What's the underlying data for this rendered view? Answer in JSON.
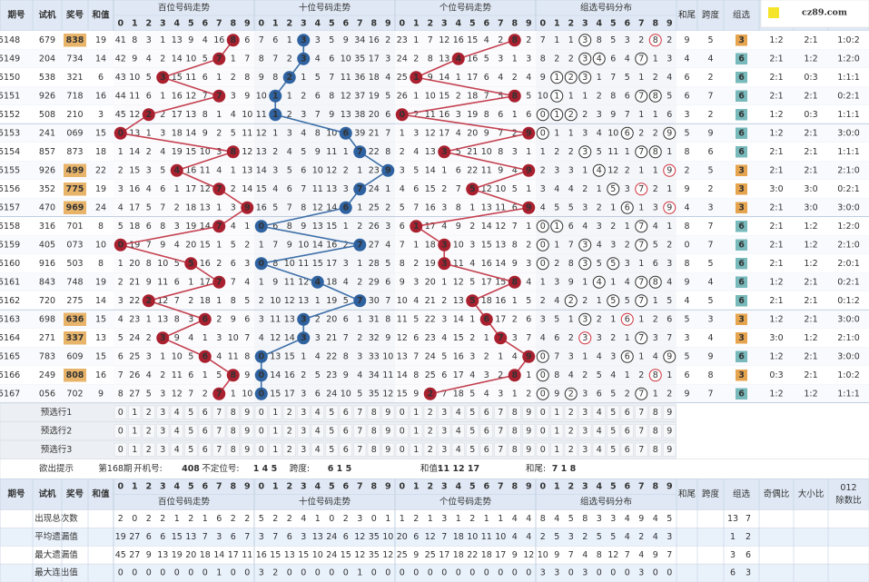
{
  "header": {
    "period": "期号",
    "trial": "试机",
    "prize": "奖号",
    "sum": "和值",
    "groups": [
      "百位号码走势",
      "十位号码走势",
      "个位号码走势",
      "组选号码分布"
    ],
    "digits": [
      0,
      1,
      2,
      3,
      4,
      5,
      6,
      7,
      8,
      9
    ],
    "tail": "和尾",
    "span": "跨度",
    "group": "组选",
    "parity": "奇偶比",
    "size": "大小比",
    "mod3": [
      "012",
      "除数比"
    ]
  },
  "watermark": "cz89.com",
  "rows": [
    {
      "period": 2025148,
      "trial": "679",
      "prize": "838",
      "sum": 19,
      "hundreds": [
        41,
        8,
        3,
        1,
        13,
        9,
        4,
        16,
        8,
        6
      ],
      "tens": [
        7,
        6,
        1,
        3,
        3,
        5,
        9,
        34,
        16,
        2
      ],
      "units": [
        23,
        1,
        7,
        12,
        16,
        15,
        4,
        2,
        8,
        2
      ],
      "dist": [
        7,
        1,
        1,
        3,
        8,
        5,
        3,
        2,
        8,
        2
      ],
      "tail": 9,
      "span": 5,
      "group": 3,
      "parity": "1:2",
      "size": "2:1",
      "mod3": "1:0:2"
    },
    {
      "period": 2025149,
      "trial": "204",
      "prize": "734",
      "sum": 14,
      "hundreds": [
        42,
        9,
        4,
        2,
        14,
        10,
        5,
        7,
        1,
        7
      ],
      "tens": [
        8,
        7,
        2,
        3,
        4,
        6,
        10,
        35,
        17,
        3
      ],
      "units": [
        24,
        2,
        8,
        13,
        4,
        16,
        5,
        3,
        1,
        3
      ],
      "dist": [
        8,
        2,
        2,
        3,
        4,
        6,
        4,
        7,
        1,
        3
      ],
      "tail": 4,
      "span": 4,
      "group": 6,
      "parity": "2:1",
      "size": "1:2",
      "mod3": "1:2:0"
    },
    {
      "period": 2025150,
      "trial": "538",
      "prize": "321",
      "sum": 6,
      "hundreds": [
        43,
        10,
        5,
        3,
        15,
        11,
        6,
        1,
        2,
        8
      ],
      "tens": [
        9,
        8,
        2,
        1,
        5,
        7,
        11,
        36,
        18,
        4
      ],
      "units": [
        25,
        1,
        9,
        14,
        1,
        17,
        6,
        4,
        2,
        4
      ],
      "dist": [
        9,
        1,
        2,
        3,
        1,
        7,
        5,
        1,
        2,
        4
      ],
      "tail": 6,
      "span": 2,
      "group": 6,
      "parity": "2:1",
      "size": "0:3",
      "mod3": "1:1:1"
    },
    {
      "period": 2025151,
      "trial": "926",
      "prize": "718",
      "sum": 16,
      "hundreds": [
        44,
        11,
        6,
        1,
        16,
        12,
        7,
        7,
        3,
        9
      ],
      "tens": [
        10,
        1,
        1,
        2,
        6,
        8,
        12,
        37,
        19,
        5
      ],
      "units": [
        26,
        1,
        10,
        15,
        2,
        18,
        7,
        5,
        8,
        5
      ],
      "dist": [
        10,
        1,
        1,
        1,
        2,
        8,
        6,
        7,
        8,
        5
      ],
      "tail": 6,
      "span": 7,
      "group": 6,
      "parity": "2:1",
      "size": "2:1",
      "mod3": "0:2:1"
    },
    {
      "period": 2025152,
      "trial": "508",
      "prize": "210",
      "sum": 3,
      "hundreds": [
        45,
        12,
        2,
        2,
        17,
        13,
        8,
        1,
        4,
        10
      ],
      "tens": [
        11,
        1,
        2,
        3,
        7,
        9,
        13,
        38,
        20,
        6
      ],
      "units": [
        0,
        2,
        11,
        16,
        3,
        19,
        8,
        6,
        1,
        6
      ],
      "dist": [
        0,
        1,
        2,
        2,
        3,
        9,
        7,
        1,
        1,
        6
      ],
      "tail": 3,
      "span": 2,
      "group": 6,
      "parity": "1:2",
      "size": "0:3",
      "mod3": "1:1:1"
    },
    {
      "period": 2025153,
      "trial": "241",
      "prize": "069",
      "sum": 15,
      "hundreds": [
        0,
        13,
        1,
        3,
        18,
        14,
        9,
        2,
        5,
        11
      ],
      "tens": [
        12,
        1,
        3,
        4,
        8,
        10,
        6,
        39,
        21,
        7
      ],
      "units": [
        1,
        3,
        12,
        17,
        4,
        20,
        9,
        7,
        2,
        9
      ],
      "dist": [
        0,
        1,
        1,
        3,
        4,
        10,
        6,
        2,
        2,
        9
      ],
      "tail": 5,
      "span": 9,
      "group": 6,
      "parity": "1:2",
      "size": "2:1",
      "mod3": "3:0:0"
    },
    {
      "period": 2025154,
      "trial": "857",
      "prize": "873",
      "sum": 18,
      "hundreds": [
        1,
        14,
        2,
        4,
        19,
        15,
        10,
        3,
        8,
        12
      ],
      "tens": [
        13,
        2,
        4,
        5,
        9,
        11,
        1,
        7,
        22,
        8
      ],
      "units": [
        2,
        4,
        13,
        3,
        5,
        21,
        10,
        8,
        3,
        1
      ],
      "dist": [
        1,
        2,
        2,
        3,
        5,
        11,
        1,
        7,
        8,
        1
      ],
      "tail": 8,
      "span": 6,
      "group": 6,
      "parity": "2:1",
      "size": "2:1",
      "mod3": "1:1:1"
    },
    {
      "period": 2025155,
      "trial": "926",
      "prize": "499",
      "sum": 22,
      "hundreds": [
        2,
        15,
        3,
        5,
        4,
        16,
        11,
        4,
        1,
        13
      ],
      "tens": [
        14,
        3,
        5,
        6,
        10,
        12,
        2,
        1,
        23,
        9
      ],
      "units": [
        3,
        5,
        14,
        1,
        6,
        22,
        11,
        9,
        4,
        9
      ],
      "dist": [
        2,
        3,
        3,
        1,
        4,
        12,
        2,
        1,
        1,
        9
      ],
      "tail": 2,
      "span": 5,
      "group": 3,
      "parity": "2:1",
      "size": "2:1",
      "mod3": "2:1:0"
    },
    {
      "period": 2025156,
      "trial": "352",
      "prize": "775",
      "sum": 19,
      "hundreds": [
        3,
        16,
        4,
        6,
        1,
        17,
        12,
        7,
        2,
        14
      ],
      "tens": [
        15,
        4,
        6,
        7,
        11,
        13,
        3,
        7,
        24,
        1
      ],
      "units": [
        4,
        6,
        15,
        2,
        7,
        5,
        12,
        10,
        5,
        1
      ],
      "dist": [
        3,
        4,
        4,
        2,
        1,
        5,
        3,
        7,
        2,
        1
      ],
      "tail": 9,
      "span": 2,
      "group": 3,
      "parity": "3:0",
      "size": "3:0",
      "mod3": "0:2:1"
    },
    {
      "period": 2025157,
      "trial": "470",
      "prize": "969",
      "sum": 24,
      "hundreds": [
        4,
        17,
        5,
        7,
        2,
        18,
        13,
        1,
        3,
        9
      ],
      "tens": [
        16,
        5,
        7,
        8,
        12,
        14,
        6,
        1,
        25,
        2
      ],
      "units": [
        5,
        7,
        16,
        3,
        8,
        1,
        13,
        11,
        6,
        9
      ],
      "dist": [
        4,
        5,
        5,
        3,
        2,
        1,
        6,
        1,
        3,
        9
      ],
      "tail": 4,
      "span": 3,
      "group": 3,
      "parity": "2:1",
      "size": "3:0",
      "mod3": "3:0:0"
    },
    {
      "period": 2025158,
      "trial": "316",
      "prize": "701",
      "sum": 8,
      "hundreds": [
        5,
        18,
        6,
        8,
        3,
        19,
        14,
        7,
        4,
        1
      ],
      "tens": [
        0,
        6,
        8,
        9,
        13,
        15,
        1,
        2,
        26,
        3
      ],
      "units": [
        6,
        1,
        17,
        4,
        9,
        2,
        14,
        12,
        7,
        1
      ],
      "dist": [
        0,
        1,
        6,
        4,
        3,
        2,
        1,
        7,
        4,
        1
      ],
      "tail": 8,
      "span": 7,
      "group": 6,
      "parity": "2:1",
      "size": "1:2",
      "mod3": "1:2:0"
    },
    {
      "period": 2025159,
      "trial": "405",
      "prize": "073",
      "sum": 10,
      "hundreds": [
        0,
        19,
        7,
        9,
        4,
        20,
        15,
        1,
        5,
        2
      ],
      "tens": [
        1,
        7,
        9,
        10,
        14,
        16,
        2,
        7,
        27,
        4
      ],
      "units": [
        7,
        1,
        18,
        3,
        10,
        3,
        15,
        13,
        8,
        2
      ],
      "dist": [
        0,
        1,
        7,
        3,
        4,
        3,
        2,
        7,
        5,
        2
      ],
      "tail": 0,
      "span": 7,
      "group": 6,
      "parity": "2:1",
      "size": "1:2",
      "mod3": "2:1:0"
    },
    {
      "period": 2025160,
      "trial": "916",
      "prize": "503",
      "sum": 8,
      "hundreds": [
        1,
        20,
        8,
        10,
        5,
        5,
        16,
        2,
        6,
        3
      ],
      "tens": [
        0,
        8,
        10,
        11,
        15,
        17,
        3,
        1,
        28,
        5
      ],
      "units": [
        8,
        2,
        19,
        3,
        11,
        4,
        16,
        14,
        9,
        3
      ],
      "dist": [
        0,
        2,
        8,
        3,
        5,
        5,
        3,
        1,
        6,
        3
      ],
      "tail": 8,
      "span": 5,
      "group": 6,
      "parity": "2:1",
      "size": "1:2",
      "mod3": "2:0:1"
    },
    {
      "period": 2025161,
      "trial": "843",
      "prize": "748",
      "sum": 19,
      "hundreds": [
        2,
        21,
        9,
        11,
        6,
        1,
        17,
        7,
        7,
        4
      ],
      "tens": [
        1,
        9,
        11,
        12,
        4,
        18,
        4,
        2,
        29,
        6
      ],
      "units": [
        9,
        3,
        20,
        1,
        12,
        5,
        17,
        15,
        8,
        4
      ],
      "dist": [
        1,
        3,
        9,
        1,
        4,
        1,
        4,
        7,
        8,
        4
      ],
      "tail": 9,
      "span": 4,
      "group": 6,
      "parity": "1:2",
      "size": "2:1",
      "mod3": "0:2:1"
    },
    {
      "period": 2025162,
      "trial": "720",
      "prize": "275",
      "sum": 14,
      "hundreds": [
        3,
        22,
        2,
        12,
        7,
        2,
        18,
        1,
        8,
        5
      ],
      "tens": [
        2,
        10,
        12,
        13,
        1,
        19,
        5,
        7,
        30,
        7
      ],
      "units": [
        10,
        4,
        21,
        2,
        13,
        5,
        18,
        16,
        1,
        5
      ],
      "dist": [
        2,
        4,
        2,
        2,
        1,
        5,
        5,
        7,
        1,
        5
      ],
      "tail": 4,
      "span": 5,
      "group": 6,
      "parity": "2:1",
      "size": "2:1",
      "mod3": "0:1:2"
    },
    {
      "period": 2025163,
      "trial": "698",
      "prize": "636",
      "sum": 15,
      "hundreds": [
        4,
        23,
        1,
        13,
        8,
        3,
        6,
        2,
        9,
        6
      ],
      "tens": [
        3,
        11,
        13,
        3,
        2,
        20,
        6,
        1,
        31,
        8
      ],
      "units": [
        11,
        5,
        22,
        3,
        14,
        1,
        6,
        17,
        2,
        6
      ],
      "dist": [
        3,
        5,
        1,
        3,
        2,
        1,
        6,
        1,
        2,
        6
      ],
      "tail": 5,
      "span": 3,
      "group": 3,
      "parity": "1:2",
      "size": "2:1",
      "mod3": "3:0:0"
    },
    {
      "period": 2025164,
      "trial": "271",
      "prize": "337",
      "sum": 13,
      "hundreds": [
        5,
        24,
        2,
        3,
        9,
        4,
        1,
        3,
        10,
        7
      ],
      "tens": [
        4,
        12,
        14,
        3,
        3,
        21,
        7,
        2,
        32,
        9
      ],
      "units": [
        12,
        6,
        23,
        4,
        15,
        2,
        1,
        7,
        3,
        7
      ],
      "dist": [
        4,
        6,
        2,
        3,
        3,
        2,
        1,
        7,
        3,
        7
      ],
      "tail": 3,
      "span": 4,
      "group": 3,
      "parity": "3:0",
      "size": "1:2",
      "mod3": "2:1:0"
    },
    {
      "period": 2025165,
      "trial": "783",
      "prize": "609",
      "sum": 15,
      "hundreds": [
        6,
        25,
        3,
        1,
        10,
        5,
        6,
        4,
        11,
        8
      ],
      "tens": [
        0,
        13,
        15,
        1,
        4,
        22,
        8,
        3,
        33,
        10
      ],
      "units": [
        13,
        7,
        24,
        5,
        16,
        3,
        2,
        1,
        4,
        9
      ],
      "dist": [
        0,
        7,
        3,
        1,
        4,
        3,
        6,
        1,
        4,
        9
      ],
      "tail": 5,
      "span": 9,
      "group": 6,
      "parity": "1:2",
      "size": "2:1",
      "mod3": "3:0:0"
    },
    {
      "period": 2025166,
      "trial": "249",
      "prize": "808",
      "sum": 16,
      "hundreds": [
        7,
        26,
        4,
        2,
        11,
        6,
        1,
        5,
        8,
        9
      ],
      "tens": [
        0,
        14,
        16,
        2,
        5,
        23,
        9,
        4,
        34,
        11
      ],
      "units": [
        14,
        8,
        25,
        6,
        17,
        4,
        3,
        2,
        8,
        1
      ],
      "dist": [
        0,
        8,
        4,
        2,
        5,
        4,
        1,
        2,
        8,
        1
      ],
      "tail": 6,
      "span": 8,
      "group": 3,
      "parity": "0:3",
      "size": "2:1",
      "mod3": "1:0:2"
    },
    {
      "period": 2025167,
      "trial": "056",
      "prize": "702",
      "sum": 9,
      "hundreds": [
        8,
        27,
        5,
        3,
        12,
        7,
        2,
        7,
        1,
        10
      ],
      "tens": [
        0,
        15,
        17,
        3,
        6,
        24,
        10,
        5,
        35,
        12
      ],
      "units": [
        15,
        9,
        2,
        7,
        18,
        5,
        4,
        3,
        1,
        2
      ],
      "dist": [
        0,
        9,
        2,
        3,
        6,
        5,
        2,
        7,
        1,
        2
      ],
      "tail": 9,
      "span": 7,
      "group": 6,
      "parity": "1:2",
      "size": "1:2",
      "mod3": "1:1:1"
    }
  ],
  "preselect": [
    "预选行1",
    "预选行2",
    "预选行3"
  ],
  "hint": {
    "label": "欲出提示",
    "items": [
      "第168期",
      "开机号:",
      "408",
      "不定位号:",
      "1 4 5",
      "跨度:",
      "6 1 5",
      "和值:",
      "11 12 17",
      "和尾:",
      "7 1 8"
    ]
  },
  "stats": [
    {
      "label": "出现总次数",
      "values": [
        2,
        0,
        2,
        2,
        1,
        2,
        1,
        6,
        2,
        2,
        5,
        2,
        2,
        4,
        1,
        0,
        2,
        3,
        0,
        1,
        1,
        2,
        1,
        3,
        1,
        2,
        1,
        1,
        4,
        4,
        8,
        4,
        5,
        8,
        3,
        3,
        4,
        9,
        4,
        5
      ],
      "group": [
        13,
        7
      ]
    },
    {
      "label": "平均遗漏值",
      "values": [
        19,
        27,
        6,
        6,
        15,
        13,
        7,
        3,
        6,
        7,
        3,
        7,
        6,
        3,
        13,
        24,
        6,
        12,
        35,
        10,
        20,
        6,
        12,
        7,
        18,
        10,
        11,
        10,
        4,
        4,
        2,
        5,
        3,
        2,
        5,
        5,
        4,
        2,
        4,
        3
      ],
      "group": [
        1,
        2
      ]
    },
    {
      "label": "最大遗漏值",
      "values": [
        45,
        27,
        9,
        13,
        19,
        20,
        18,
        14,
        17,
        11,
        16,
        15,
        13,
        15,
        10,
        24,
        15,
        12,
        35,
        12,
        25,
        9,
        25,
        17,
        18,
        22,
        18,
        17,
        9,
        12,
        10,
        9,
        7,
        4,
        8,
        12,
        7,
        4,
        9,
        7
      ],
      "group": [
        3,
        6
      ]
    },
    {
      "label": "最大连出值",
      "values": [
        0,
        0,
        0,
        0,
        0,
        0,
        0,
        1,
        0,
        0,
        3,
        2,
        0,
        0,
        0,
        0,
        0,
        1,
        0,
        0,
        0,
        0,
        0,
        0,
        0,
        0,
        0,
        0,
        0,
        0,
        3,
        3,
        0,
        3,
        0,
        0,
        0,
        3,
        0,
        0
      ],
      "group": [
        6,
        3
      ]
    }
  ]
}
